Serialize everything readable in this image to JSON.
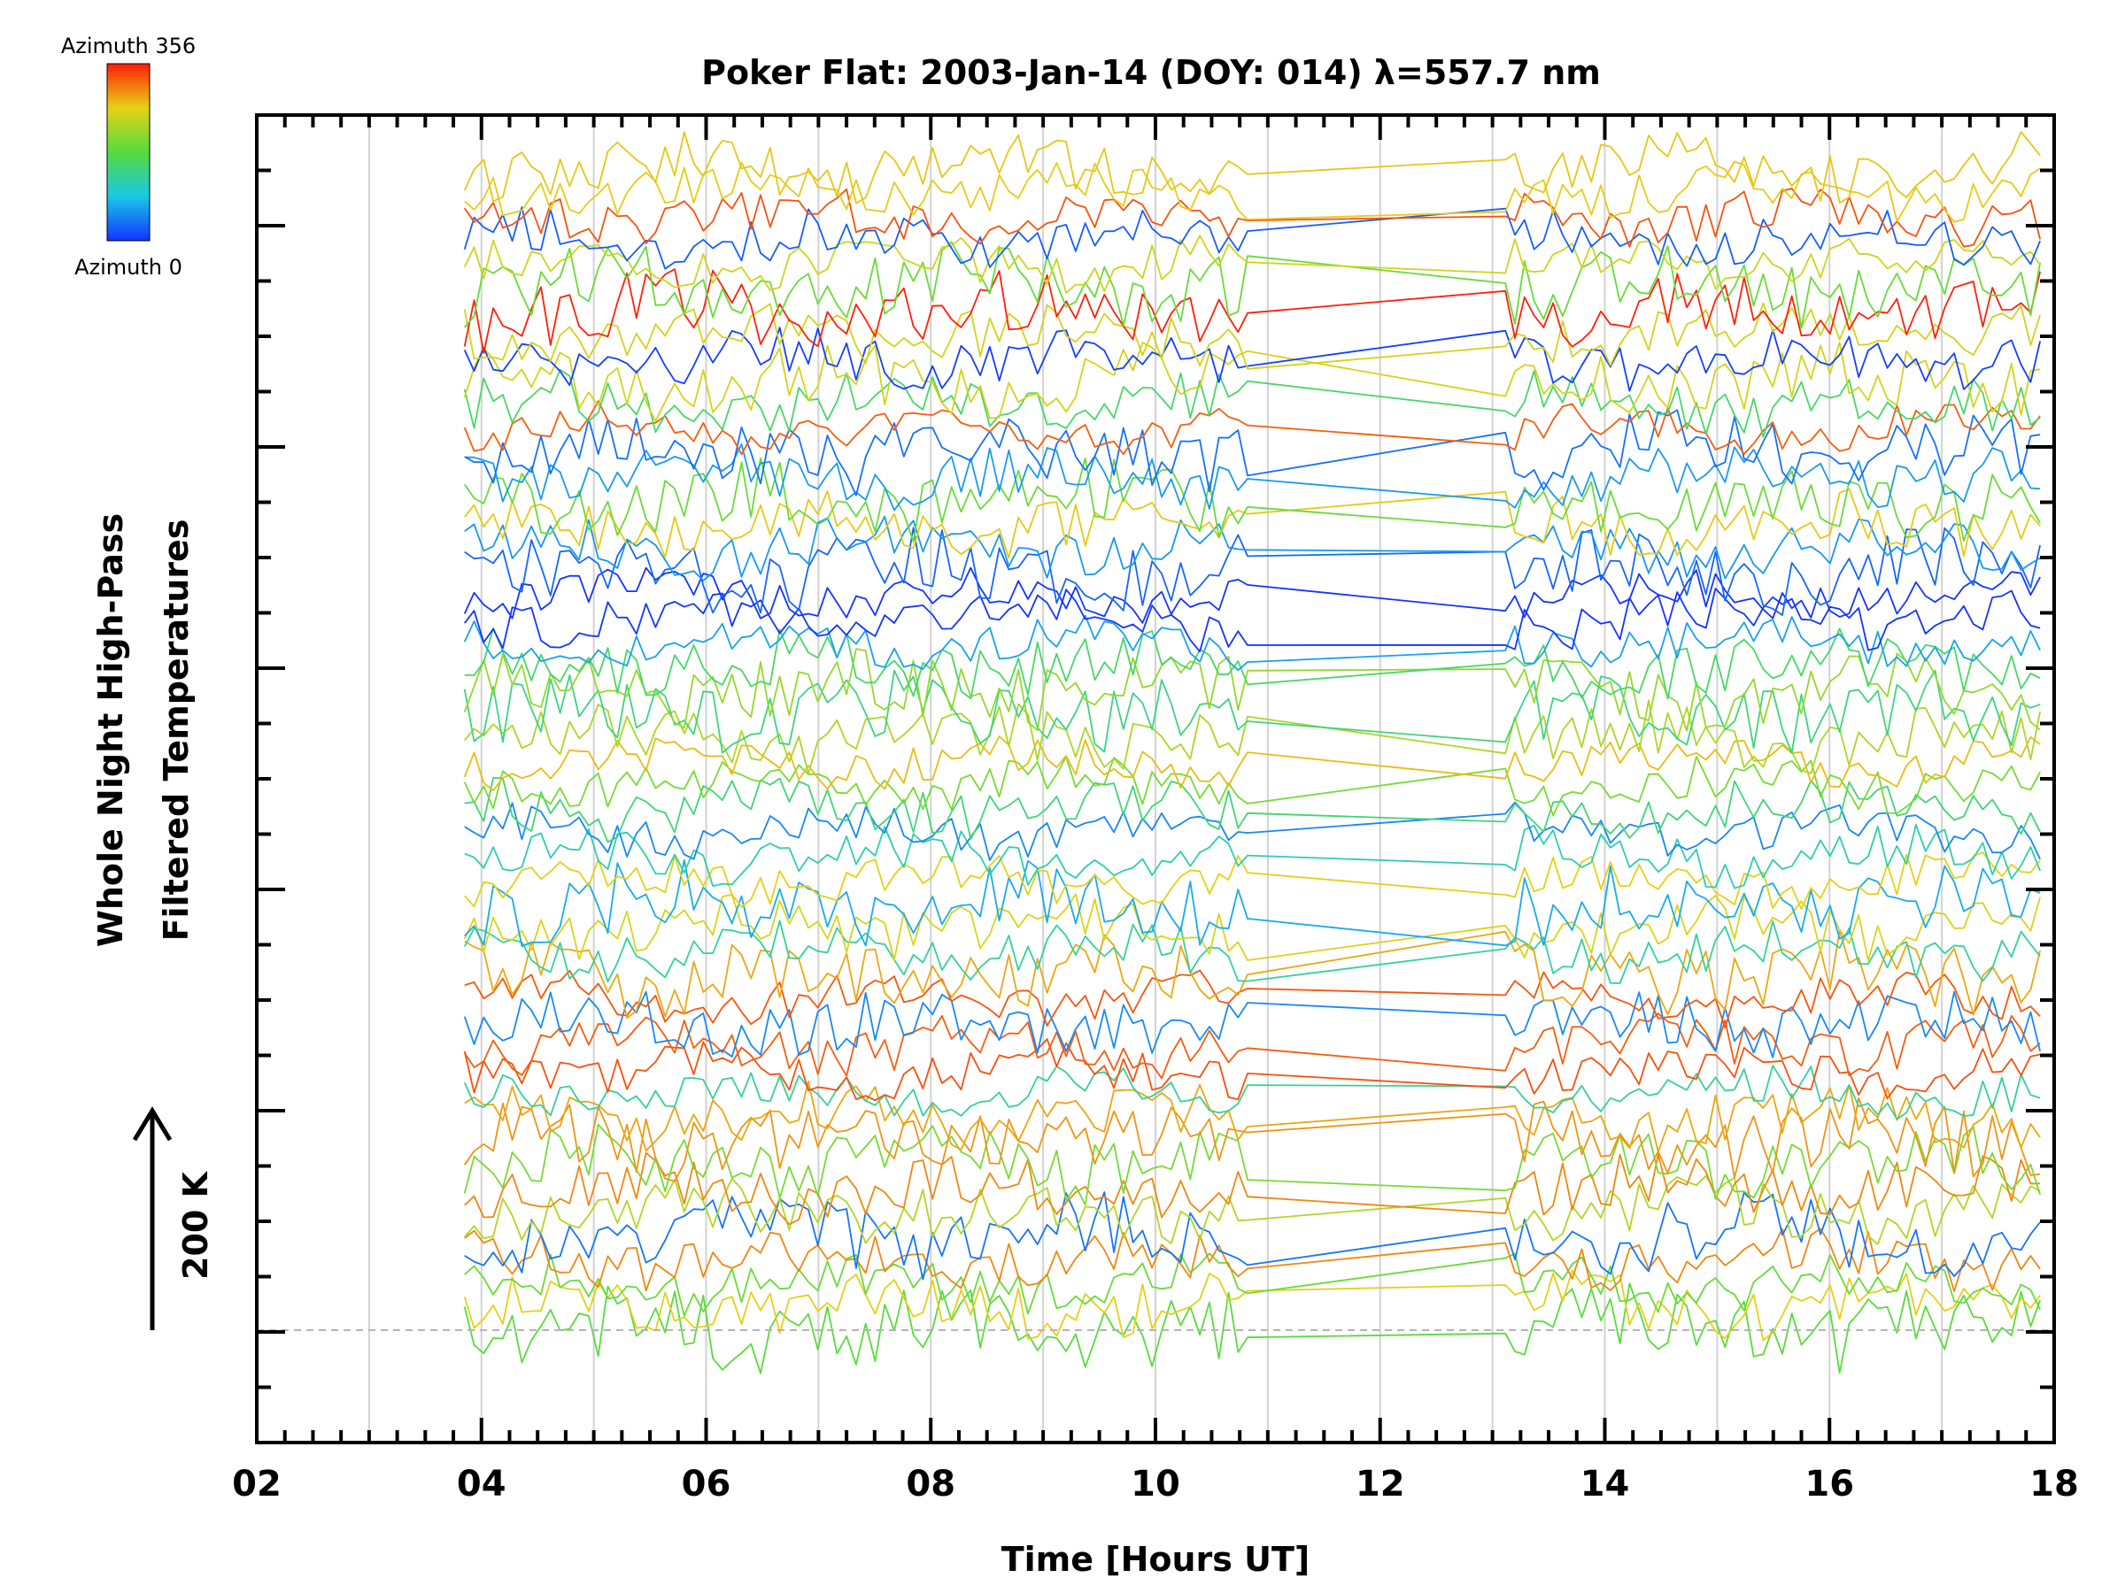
{
  "chart_data": {
    "type": "line",
    "title": "Poker Flat: 2003-Jan-14 (DOY: 014) λ=557.7 nm",
    "xlabel": "Time [Hours UT]",
    "ylabel": [
      "Whole Night High-Pass",
      "Filtered Temperatures"
    ],
    "scale_label": "200 K",
    "xlim": [
      2,
      18
    ],
    "x_ticks": [
      "02",
      "04",
      "06",
      "08",
      "10",
      "12",
      "14",
      "16",
      "18"
    ],
    "data_gaps": [
      [
        10.9,
        13.1
      ]
    ],
    "data_range_hours": [
      3.85,
      17.9
    ],
    "series_count": 50,
    "grid": true,
    "colorbar": {
      "top_label": "Azimuth 356",
      "bottom_label": "Azimuth 0",
      "min": 0,
      "max": 356
    }
  }
}
